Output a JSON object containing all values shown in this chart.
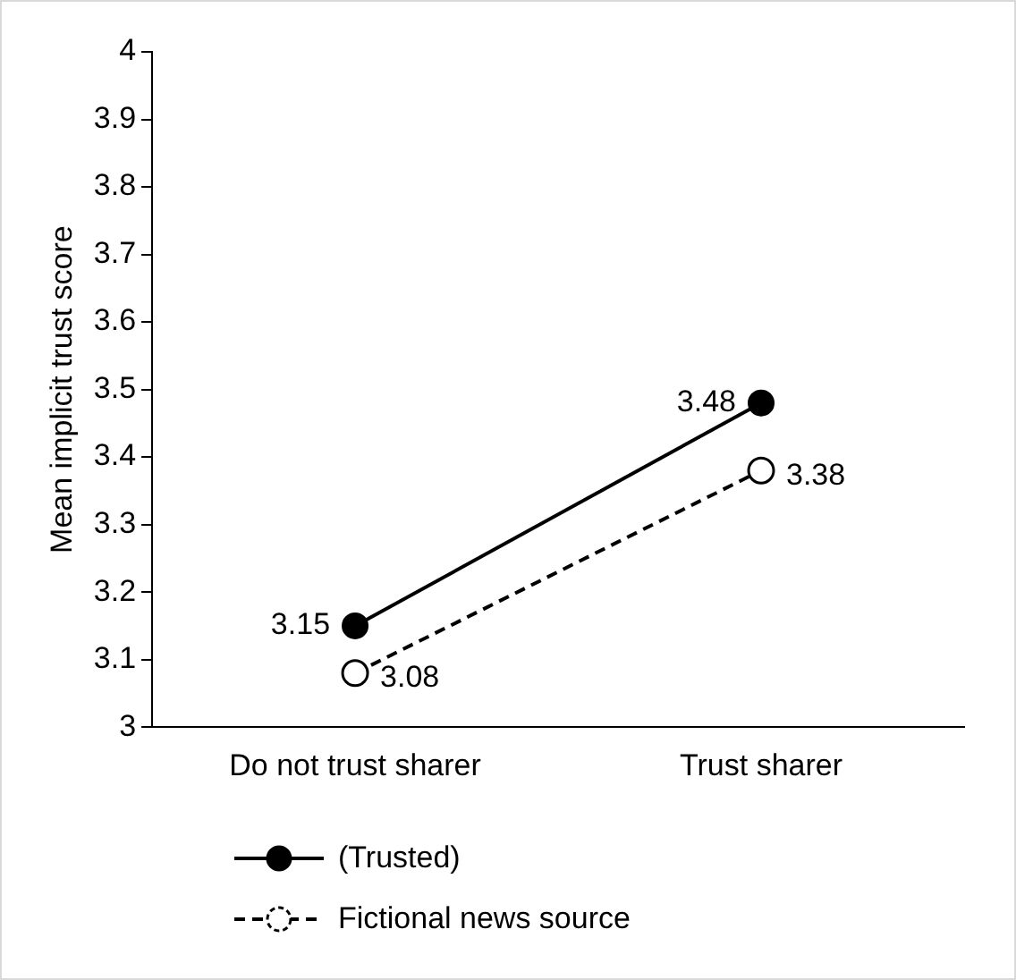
{
  "chart_data": {
    "type": "line",
    "ylabel": "Mean implicit trust score",
    "categories": [
      "Do not trust sharer",
      "Trust sharer"
    ],
    "series": [
      {
        "name": "(Trusted)",
        "color": "#000000",
        "values": [
          3.15,
          3.48
        ],
        "marker": "circle",
        "line_style": "solid"
      },
      {
        "name": "Fictional news source",
        "color": "#000000",
        "values": [
          3.08,
          3.38
        ],
        "marker": "circle",
        "line_style": "dashed"
      }
    ],
    "ylim": [
      3,
      4
    ],
    "yticks": [
      3,
      3.1,
      3.2,
      3.3,
      3.4,
      3.5,
      3.6,
      3.7,
      3.8,
      3.9,
      4
    ],
    "grid": false,
    "legend": "bottom",
    "data_labels": true
  }
}
